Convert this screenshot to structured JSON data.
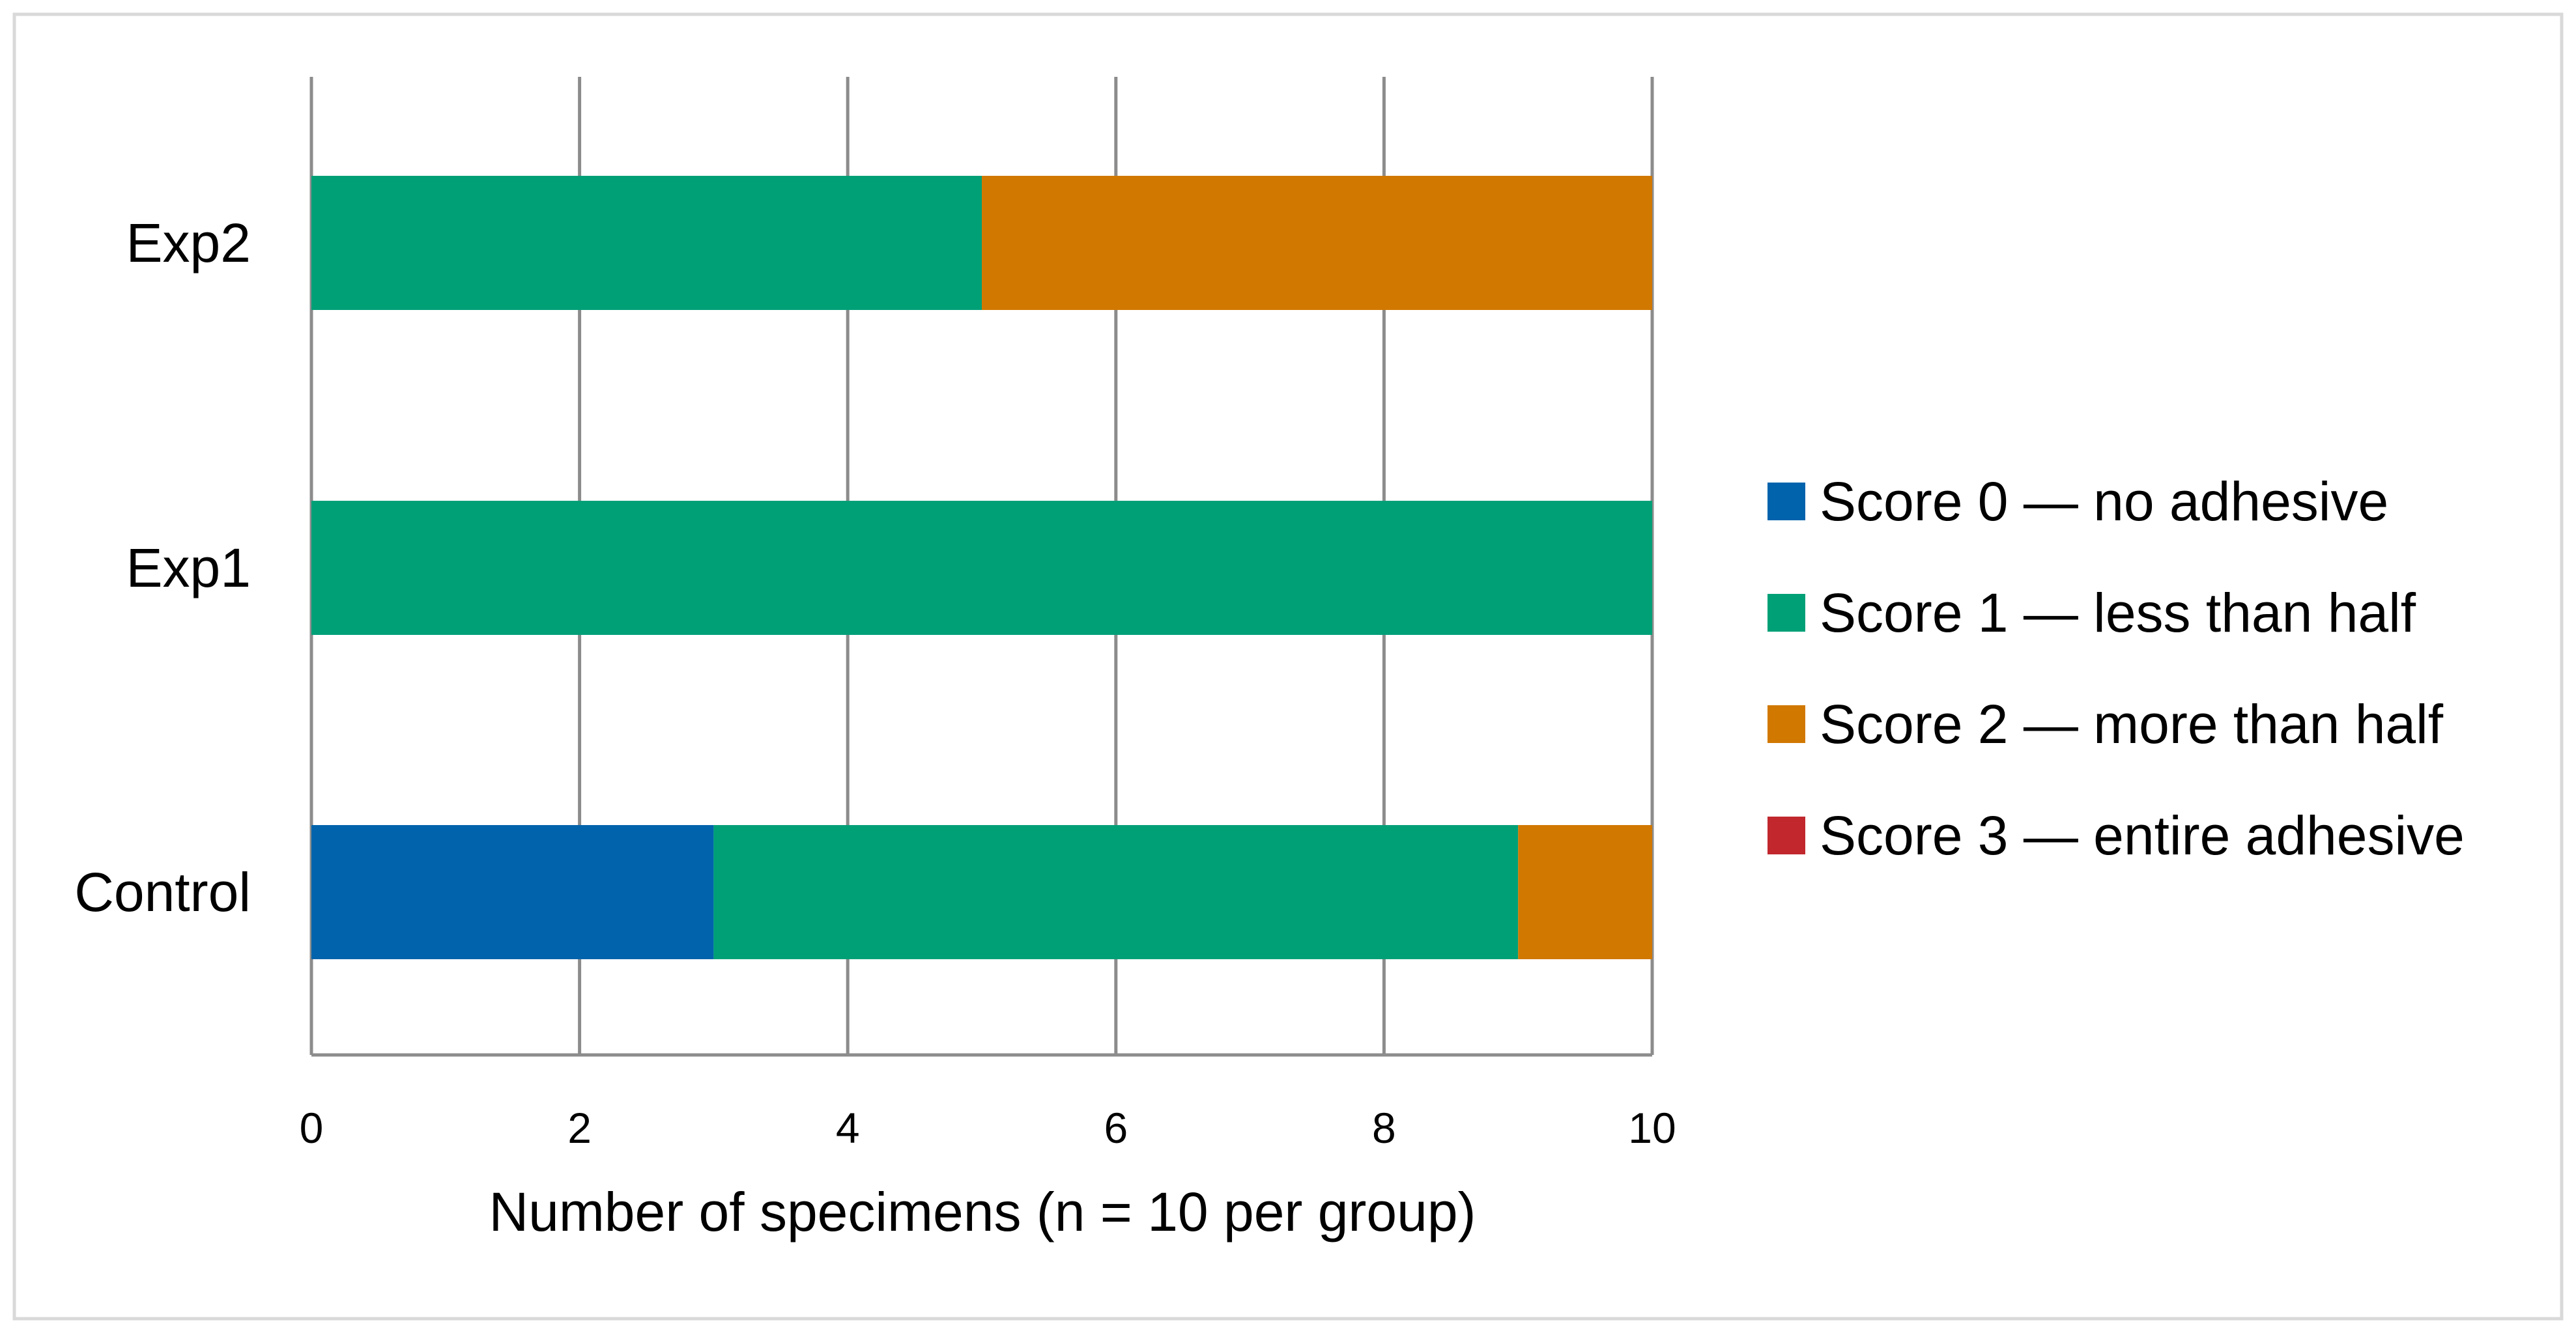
{
  "chart_data": {
    "type": "bar",
    "orientation": "horizontal",
    "stacked": true,
    "title": "",
    "xlabel": "Number of specimens (n = 10 per group)",
    "ylabel": "",
    "xlim": [
      0,
      10
    ],
    "xticks": [
      0,
      2,
      4,
      6,
      8,
      10
    ],
    "grid": "vertical",
    "legend_position": "right",
    "categories": [
      "Control",
      "Exp1",
      "Exp2"
    ],
    "series": [
      {
        "name": "Score 0 — no adhesive",
        "color": "#0063AC",
        "values": [
          3,
          0,
          0
        ]
      },
      {
        "name": "Score 1 — less than half",
        "color": "#00A077",
        "values": [
          6,
          10,
          5
        ]
      },
      {
        "name": "Score 2 — more than half",
        "color": "#D17800",
        "values": [
          1,
          0,
          5
        ]
      },
      {
        "name": "Score 3 — entire adhesive",
        "color": "#C1272D",
        "values": [
          0,
          0,
          0
        ]
      }
    ],
    "colors": {
      "grid": "#8C8C8C",
      "frame": "#D9D9D9",
      "text": "#000000"
    }
  }
}
